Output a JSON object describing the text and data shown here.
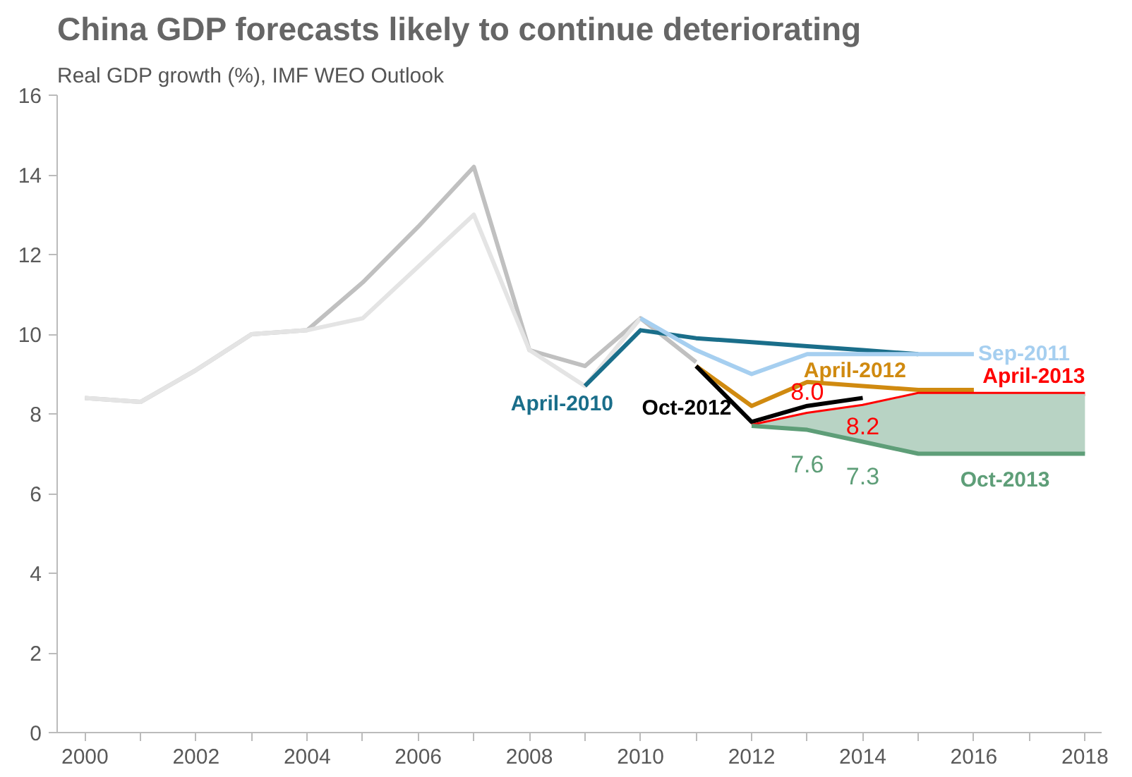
{
  "chart_data": {
    "type": "line",
    "title": "China GDP forecasts likely to continue deteriorating",
    "subtitle": "Real GDP growth (%), IMF WEO Outlook",
    "xlim": [
      1999.5,
      2018.3
    ],
    "ylim": [
      0,
      16
    ],
    "xticks": [
      2000,
      {
        "value": 2001,
        "label": null
      },
      2002,
      {
        "value": 2003,
        "label": null
      },
      2004,
      {
        "value": 2005,
        "label": null
      },
      2006,
      {
        "value": 2007,
        "label": null
      },
      2008,
      {
        "value": 2009,
        "label": null
      },
      2010,
      {
        "value": 2011,
        "label": null
      },
      2012,
      {
        "value": 2013,
        "label": null
      },
      2014,
      {
        "value": 2015,
        "label": null
      },
      2016,
      {
        "value": 2017,
        "label": null
      },
      2018
    ],
    "yticks": [
      0,
      2,
      4,
      6,
      8,
      10,
      12,
      14,
      16
    ],
    "grid": false,
    "line_style": "solid",
    "marker": "none",
    "series": [
      {
        "color": "#c0c0c0",
        "x": [
          2000,
          2001,
          2002,
          2003,
          2004,
          2005,
          2006,
          2007,
          2008,
          2009,
          2010,
          2011
        ],
        "values": [
          8.4,
          8.3,
          9.1,
          10.0,
          10.1,
          11.3,
          12.7,
          14.2,
          9.6,
          9.2,
          10.4,
          9.3
        ]
      },
      {
        "color": "#e4e4e4",
        "x": [
          2000,
          2001,
          2002,
          2003,
          2004,
          2005,
          2006,
          2007,
          2008,
          2009,
          2010
        ],
        "values": [
          8.4,
          8.3,
          9.1,
          10.0,
          10.1,
          10.4,
          11.7,
          13.0,
          9.6,
          8.7,
          10.4
        ]
      },
      {
        "name": "April-2010",
        "color": "#1a6e8a",
        "x": [
          2009,
          2010,
          2011,
          2012,
          2013,
          2014,
          2015
        ],
        "values": [
          8.7,
          10.1,
          9.9,
          9.8,
          9.7,
          9.6,
          9.5
        ]
      },
      {
        "name": "Sep-2011",
        "color": "#a6cff0",
        "x": [
          2010,
          2011,
          2012,
          2013,
          2014,
          2015,
          2016
        ],
        "values": [
          10.4,
          9.6,
          9.0,
          9.5,
          9.5,
          9.5,
          9.5
        ]
      },
      {
        "name": "April-2012",
        "color": "#d08a10",
        "x": [
          2011,
          2012,
          2013,
          2014,
          2015,
          2016
        ],
        "values": [
          9.2,
          8.2,
          8.8,
          8.7,
          8.6,
          8.6
        ]
      },
      {
        "name": "Oct-2012",
        "color": "#000000",
        "x": [
          2011,
          2012,
          2013,
          2014
        ],
        "values": [
          9.2,
          7.8,
          8.2,
          8.4
        ]
      },
      {
        "name": "April-2013",
        "color": "#ff0000",
        "x": [
          2012,
          2013,
          2014,
          2015,
          2016,
          2017,
          2018
        ],
        "values": [
          7.7,
          8.0,
          8.2,
          8.5,
          8.5,
          8.5,
          8.5
        ],
        "value_labels": [
          null,
          "8.0",
          "8.2",
          null,
          null,
          null,
          null
        ]
      },
      {
        "name": "Oct-2013",
        "color": "#5e9e78",
        "x": [
          2012,
          2013,
          2014,
          2015,
          2016,
          2017,
          2018
        ],
        "values": [
          7.7,
          7.6,
          7.3,
          7.0,
          7.0,
          7.0,
          7.0
        ],
        "value_labels": [
          null,
          "7.6",
          "7.3",
          null,
          null,
          null,
          null
        ],
        "lower": [
          7.7,
          7.6,
          7.3,
          7.0,
          7.0,
          7.0,
          7.0
        ],
        "upper": [
          7.7,
          8.0,
          8.2,
          8.5,
          8.5,
          8.5,
          8.5
        ]
      }
    ]
  }
}
